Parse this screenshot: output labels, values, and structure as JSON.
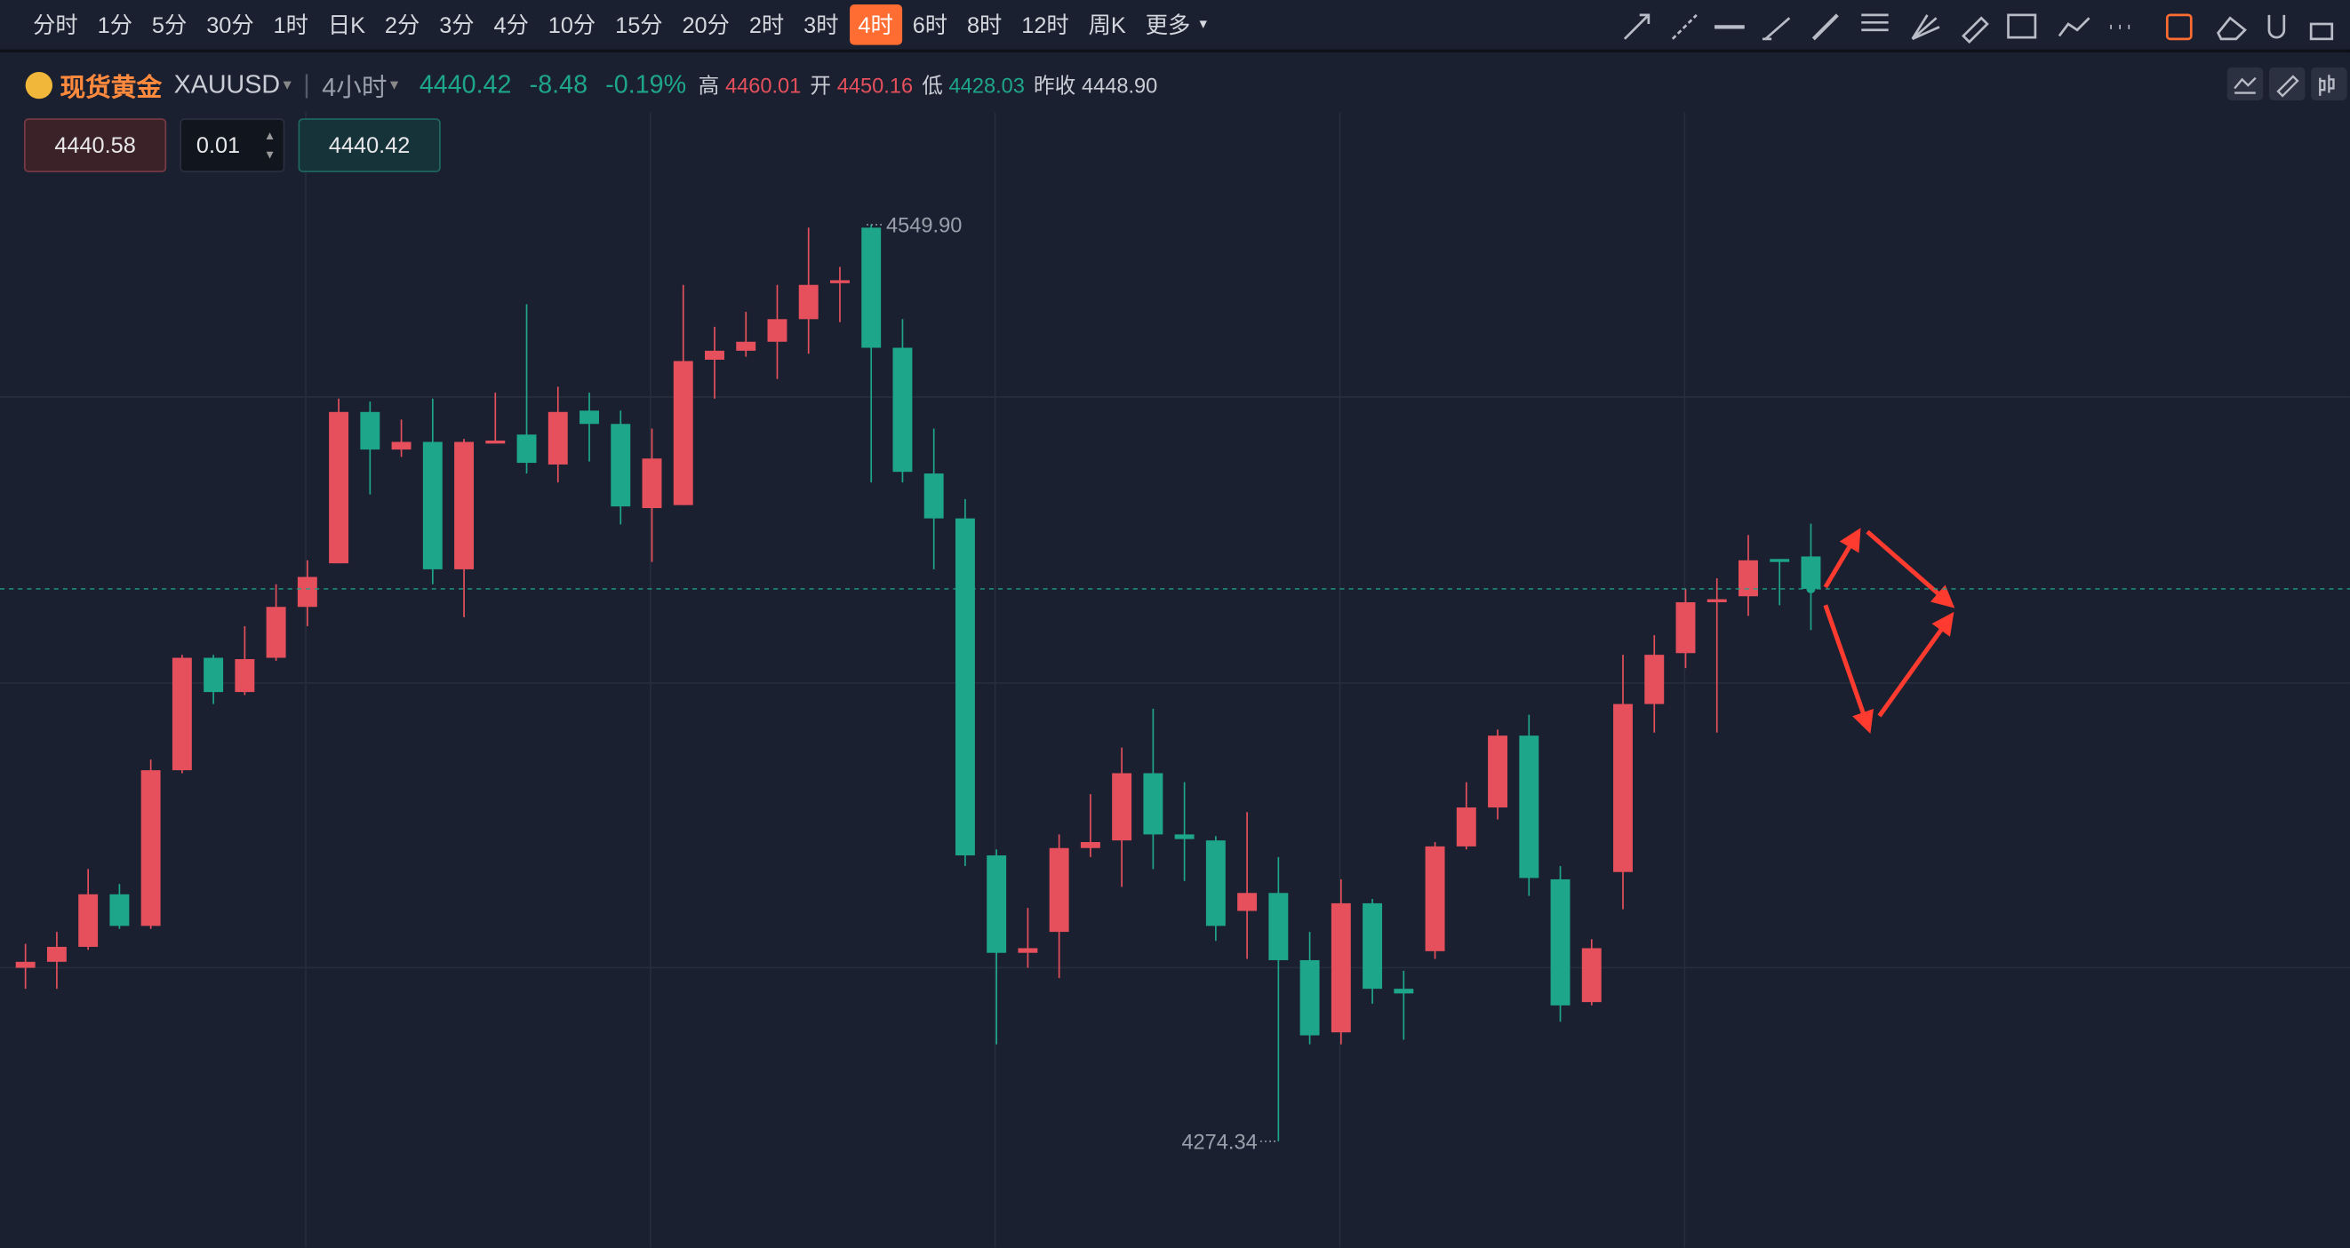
{
  "toolbar": {
    "intervals": [
      "分时",
      "1分",
      "5分",
      "30分",
      "1时",
      "日K",
      "2分",
      "3分",
      "4分",
      "10分",
      "15分",
      "20分",
      "2时",
      "3时",
      "4时",
      "6时",
      "8时",
      "12时",
      "周K"
    ],
    "active": 14,
    "more": "更多"
  },
  "header": {
    "name": "现货黄金",
    "symbol": "XAUUSD",
    "period": "4小时",
    "price": "4440.42",
    "change": "-8.48",
    "change_pct": "-0.19%",
    "high_label": "高",
    "high": "4460.01",
    "open_label": "开",
    "open": "4450.16",
    "low_label": "低",
    "low": "4428.03",
    "prev_label": "昨收",
    "prev": "4448.90"
  },
  "order": {
    "sell": "4440.58",
    "lot": "0.01",
    "buy": "4440.42"
  },
  "chart_data": {
    "type": "candlestick",
    "colors": {
      "up": "#e5505c",
      "down": "#1ea68a"
    },
    "ohlc": [
      [
        4326.5,
        4333.7,
        4320.2,
        4328.3
      ],
      [
        4328.3,
        4337.3,
        4320.2,
        4332.8
      ],
      [
        4332.8,
        4356.2,
        4331.9,
        4348.6
      ],
      [
        4348.6,
        4351.7,
        4338.2,
        4339.1
      ],
      [
        4339.1,
        4389.1,
        4338.2,
        4385.9
      ],
      [
        4385.9,
        4420.6,
        4385.0,
        4419.7
      ],
      [
        4419.7,
        4420.6,
        4405.8,
        4409.4
      ],
      [
        4409.4,
        4429.2,
        4408.5,
        4419.3
      ],
      [
        4419.7,
        4441.8,
        4418.8,
        4435.0
      ],
      [
        4435.0,
        4449.0,
        4429.2,
        4444.0
      ],
      [
        4448.1,
        4497.6,
        4448.1,
        4493.6
      ],
      [
        4493.6,
        4496.7,
        4468.8,
        4482.3
      ],
      [
        4482.3,
        4491.3,
        4480.1,
        4484.6
      ],
      [
        4484.6,
        4497.6,
        4441.8,
        4446.3
      ],
      [
        4446.3,
        4485.5,
        4431.9,
        4484.6
      ],
      [
        4484.1,
        4499.4,
        4484.1,
        4485.0
      ],
      [
        4486.8,
        4526.0,
        4475.1,
        4478.3
      ],
      [
        4477.8,
        4501.2,
        4472.4,
        4493.6
      ],
      [
        4494.0,
        4499.4,
        4478.7,
        4490.0
      ],
      [
        4490.0,
        4494.0,
        4459.8,
        4465.2
      ],
      [
        4464.7,
        4488.6,
        4448.5,
        4479.6
      ],
      [
        4465.6,
        4531.8,
        4465.6,
        4508.9
      ],
      [
        4509.3,
        4519.2,
        4497.6,
        4512.0
      ],
      [
        4512.0,
        4523.7,
        4510.2,
        4514.7
      ],
      [
        4514.7,
        4531.8,
        4503.5,
        4521.5
      ],
      [
        4521.5,
        4549.0,
        4511.1,
        4531.8
      ],
      [
        4532.3,
        4537.2,
        4520.6,
        4533.2
      ],
      [
        4549.0,
        4549.9,
        4472.4,
        4512.9
      ],
      [
        4512.9,
        4521.5,
        4472.4,
        4475.6
      ],
      [
        4475.1,
        4488.6,
        4446.3,
        4461.6
      ],
      [
        4461.6,
        4467.4,
        4357.1,
        4360.3
      ],
      [
        4360.3,
        4362.1,
        4303.5,
        4331.0
      ],
      [
        4331.0,
        4344.5,
        4326.5,
        4332.4
      ],
      [
        4337.3,
        4366.6,
        4323.4,
        4362.5
      ],
      [
        4362.5,
        4378.7,
        4359.8,
        4364.3
      ],
      [
        4364.8,
        4392.7,
        4350.8,
        4385.0
      ],
      [
        4385.0,
        4404.4,
        4356.2,
        4366.6
      ],
      [
        4366.6,
        4382.3,
        4352.6,
        4365.2
      ],
      [
        4364.8,
        4366.1,
        4334.6,
        4339.1
      ],
      [
        4343.6,
        4373.3,
        4329.2,
        4349.0
      ],
      [
        4349.0,
        4359.8,
        4274.34,
        4328.8
      ],
      [
        4328.8,
        4337.3,
        4303.5,
        4306.2
      ],
      [
        4307.1,
        4353.1,
        4303.5,
        4345.9
      ],
      [
        4345.9,
        4347.2,
        4315.7,
        4320.2
      ],
      [
        4320.2,
        4325.6,
        4304.9,
        4318.8
      ],
      [
        4331.5,
        4364.3,
        4329.2,
        4363.0
      ],
      [
        4363.0,
        4382.3,
        4362.1,
        4374.7
      ],
      [
        4374.7,
        4398.1,
        4371.1,
        4396.3
      ],
      [
        4396.3,
        4402.6,
        4348.1,
        4353.5
      ],
      [
        4353.1,
        4357.1,
        4310.3,
        4315.2
      ],
      [
        4316.2,
        4335.1,
        4315.2,
        4332.4
      ],
      [
        4355.3,
        4420.6,
        4344.1,
        4405.8
      ],
      [
        4405.8,
        4426.5,
        4397.2,
        4420.6
      ],
      [
        4421.1,
        4440.4,
        4416.6,
        4436.4
      ],
      [
        4436.4,
        4443.6,
        4397.2,
        4437.3
      ],
      [
        4438.2,
        4456.6,
        4432.3,
        4449.0
      ],
      [
        4449.4,
        4449.4,
        4435.5,
        4448.5
      ],
      [
        4450.16,
        4460.01,
        4428.03,
        4440.42
      ]
    ],
    "annotations": [
      {
        "value": 4549.9,
        "label": "4549.90"
      },
      {
        "value": 4274.34,
        "label": "4274.34"
      }
    ]
  }
}
